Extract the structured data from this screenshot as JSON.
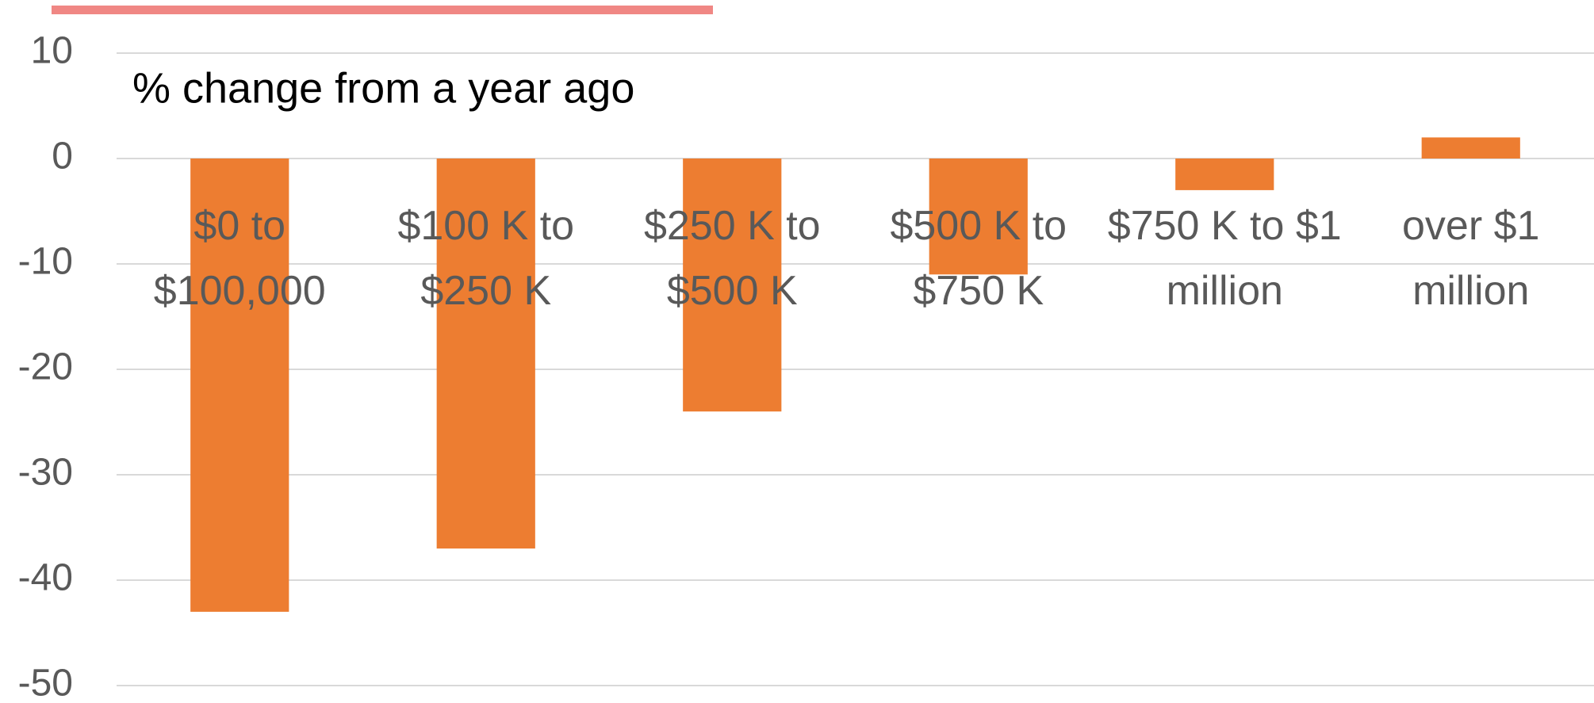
{
  "chart_data": {
    "type": "bar",
    "title": "% change from a year ago",
    "categories": [
      "$0 to $100,000",
      "$100 K to $250 K",
      "$250 K to $500 K",
      "$500 K to $750 K",
      "$750 K to $1 million",
      "over $1 million"
    ],
    "values": [
      -43,
      -37,
      -24,
      -11,
      -3,
      2
    ],
    "color": "#ed7d31",
    "ylim": [
      -50,
      10
    ],
    "yticks": [
      -50,
      -40,
      -30,
      -20,
      -10,
      0,
      10
    ],
    "grid": true
  }
}
